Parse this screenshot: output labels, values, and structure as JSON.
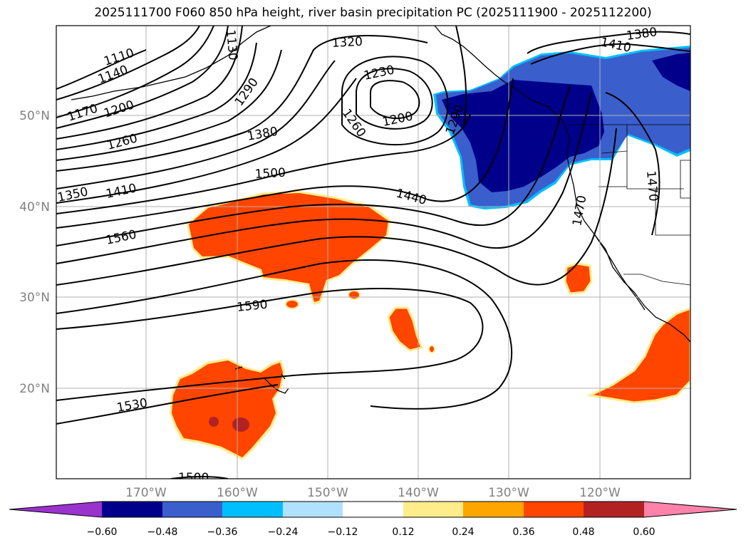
{
  "title": "2025111700 F060 850 hPa height, river basin precipitation PC (2025111900 - 2025112200)",
  "latitude_labels": [
    "50°N",
    "40°N",
    "30°N",
    "20°N"
  ],
  "longitude_labels": [
    "170°W",
    "160°W",
    "150°W",
    "140°W",
    "130°W",
    "120°W"
  ],
  "contour_labels": [
    "1110",
    "1140",
    "1170",
    "1200",
    "1260",
    "1350",
    "1410",
    "1560",
    "1290",
    "1380",
    "1500",
    "1590",
    "1530",
    "1500",
    "1130",
    "1320",
    "1230",
    "1260",
    "1200",
    "1290",
    "1440",
    "1380",
    "1410",
    "1470",
    "1470"
  ],
  "colorbar": {
    "ticks": [
      "−0.60",
      "−0.48",
      "−0.36",
      "−0.24",
      "−0.12",
      "0.12",
      "0.24",
      "0.36",
      "0.48",
      "0.60"
    ],
    "colors": [
      "#9a32cd",
      "#00008b",
      "#3a5fcd",
      "#00bfff",
      "#b0e2ff",
      "#ffffff",
      "#ffec8b",
      "#ffa500",
      "#ff4500",
      "#b22222",
      "#ff82ab"
    ]
  },
  "colors": {
    "strong_negative": "#00008b",
    "negative": "#3a5fcd",
    "weak_negative": "#00bfff",
    "positive": "#ff4500",
    "weak_positive": "#ffec8b",
    "strong_positive": "#b22222",
    "grid": "#b0b0b0"
  }
}
